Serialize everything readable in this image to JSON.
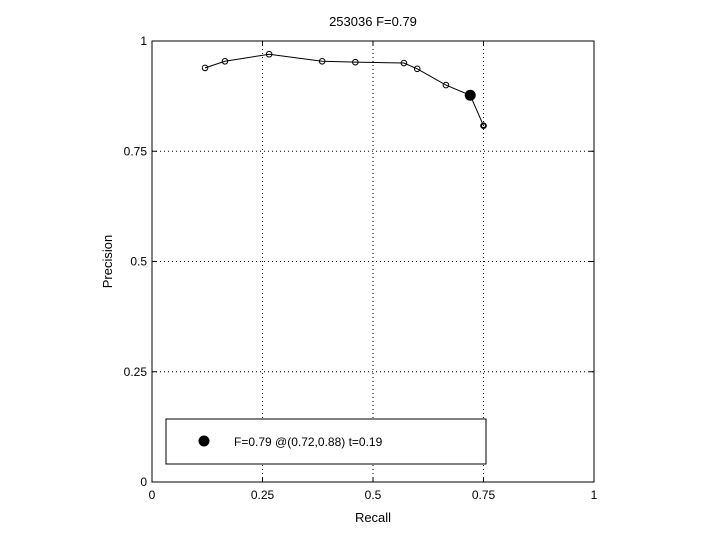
{
  "chart_data": {
    "type": "line",
    "title": "253036 F=0.79",
    "xlabel": "Recall",
    "ylabel": "Precision",
    "xlim": [
      0,
      1
    ],
    "ylim": [
      0,
      1
    ],
    "xticks": [
      0,
      0.25,
      0.5,
      0.75,
      1
    ],
    "yticks": [
      0,
      0.25,
      0.5,
      0.75,
      1
    ],
    "xtick_labels": [
      "0",
      "0.25",
      "0.5",
      "0.75",
      "1"
    ],
    "ytick_labels": [
      "0",
      "0.25",
      "0.5",
      "0.75",
      "1"
    ],
    "grid": true,
    "series": [
      {
        "marker": "open-circle",
        "color": "#000000",
        "x": [
          0.12,
          0.165,
          0.265,
          0.385,
          0.46,
          0.57,
          0.6,
          0.665,
          0.72,
          0.75
        ],
        "y": [
          0.939,
          0.954,
          0.97,
          0.954,
          0.952,
          0.95,
          0.937,
          0.9,
          0.877,
          0.808
        ]
      }
    ],
    "best_point": {
      "x": 0.72,
      "y": 0.877,
      "marker": "filled-circle",
      "color": "#000000"
    },
    "extra_markers": [
      {
        "x": 0.75,
        "y": 0.808,
        "marker": "open-circle"
      }
    ],
    "legend": {
      "placement": "bottom-left",
      "entries": [
        {
          "label": "F=0.79 @(0.72,0.88) t=0.19",
          "marker": "filled-circle"
        }
      ]
    }
  }
}
